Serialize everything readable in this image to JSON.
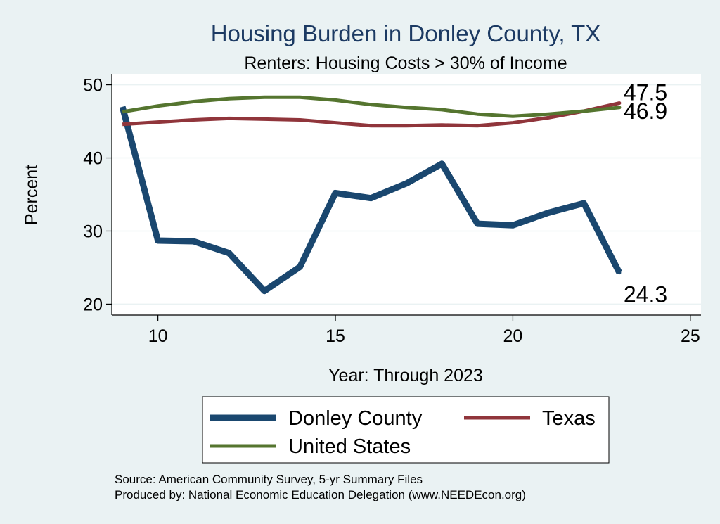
{
  "chart_data": {
    "type": "line",
    "title": "Housing Burden in Donley County, TX",
    "subtitle": "Renters: Housing Costs > 30% of Income",
    "xlabel": "Year: Through 2023",
    "ylabel": "Percent",
    "xlim": [
      8.7,
      25.3
    ],
    "ylim": [
      18.5,
      51.5
    ],
    "x_ticks": [
      10,
      15,
      20,
      25
    ],
    "y_ticks": [
      20,
      30,
      40,
      50
    ],
    "grid": true,
    "legend_position": "bottom",
    "x": [
      9,
      10,
      11,
      12,
      13,
      14,
      15,
      16,
      17,
      18,
      19,
      20,
      21,
      22,
      23
    ],
    "series": [
      {
        "name": "Donley County",
        "color": "#1a476f",
        "width": 9,
        "values": [
          47.0,
          28.7,
          28.6,
          27.0,
          21.8,
          25.1,
          35.2,
          34.5,
          36.5,
          39.2,
          31.0,
          30.8,
          32.5,
          33.8,
          24.3
        ],
        "end_label": "24.3"
      },
      {
        "name": "Texas",
        "color": "#90353b",
        "width": 5,
        "values": [
          44.6,
          44.9,
          45.2,
          45.4,
          45.3,
          45.2,
          44.8,
          44.4,
          44.4,
          44.5,
          44.4,
          44.8,
          45.5,
          46.4,
          47.5
        ],
        "end_label": "47.5"
      },
      {
        "name": "United States",
        "color": "#55752f",
        "width": 5,
        "values": [
          46.3,
          47.1,
          47.7,
          48.1,
          48.3,
          48.3,
          47.9,
          47.3,
          46.9,
          46.6,
          46.0,
          45.7,
          46.0,
          46.4,
          46.9
        ],
        "end_label": "46.9"
      }
    ]
  },
  "source": {
    "line1": "Source: American Community Survey, 5-yr Summary Files",
    "line2": "Produced by: National Economic Education Delegation (www.NEEDEcon.org)"
  }
}
